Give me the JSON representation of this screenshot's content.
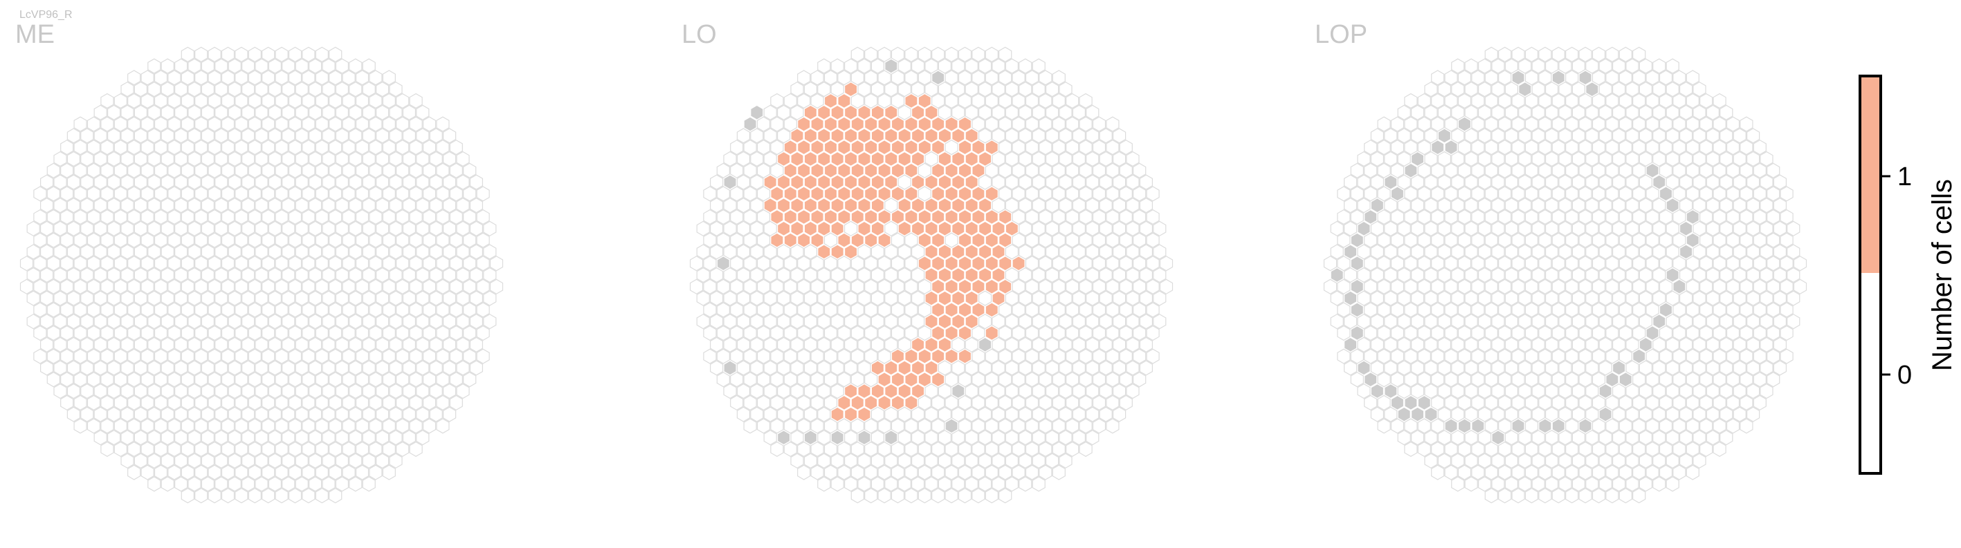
{
  "figure_label": "LcVP96_R",
  "colors": {
    "empty_outline": "#dcdcdc",
    "filled": "#f8b194",
    "outside_gray": "#cccccc",
    "title_gray": "#c0c0c0",
    "axis": "#000000"
  },
  "chart_data": [
    {
      "type": "heatmap",
      "title": "ME",
      "description_cells": "hexagonal column map; all columns count 0",
      "filled_columns": [],
      "outside_columns": []
    },
    {
      "type": "heatmap",
      "title": "LO",
      "filled_region_rows": [
        {
          "row": -16,
          "cols": [
            [
              -6,
              -6
            ]
          ]
        },
        {
          "row": -15,
          "cols": [
            [
              -8,
              -7
            ],
            [
              -2,
              -1
            ]
          ]
        },
        {
          "row": -14,
          "cols": [
            [
              -9,
              -3
            ],
            [
              -1,
              0
            ]
          ]
        },
        {
          "row": -13,
          "cols": [
            [
              -10,
              2
            ]
          ]
        },
        {
          "row": -12,
          "cols": [
            [
              -10,
              3
            ]
          ]
        },
        {
          "row": -11,
          "cols": [
            [
              -11,
              0
            ],
            [
              2,
              4
            ]
          ]
        },
        {
          "row": -10,
          "cols": [
            [
              -11,
              -1
            ],
            [
              1,
              4
            ]
          ]
        },
        {
          "row": -9,
          "cols": [
            [
              -11,
              -2
            ],
            [
              0,
              3
            ]
          ]
        },
        {
          "row": -8,
          "cols": [
            [
              -12,
              -3
            ],
            [
              -1,
              3
            ]
          ]
        },
        {
          "row": -7,
          "cols": [
            [
              -12,
              -2
            ],
            [
              0,
              4
            ]
          ]
        },
        {
          "row": -6,
          "cols": [
            [
              -12,
              -4
            ],
            [
              -2,
              4
            ]
          ]
        },
        {
          "row": -5,
          "cols": [
            [
              -12,
              5
            ]
          ]
        },
        {
          "row": -4,
          "cols": [
            [
              -11,
              -7
            ],
            [
              -5,
              -4
            ],
            [
              -2,
              6
            ]
          ]
        },
        {
          "row": -3,
          "cols": [
            [
              -12,
              -9
            ],
            [
              -7,
              -4
            ],
            [
              -1,
              0
            ],
            [
              2,
              5
            ]
          ]
        },
        {
          "row": -2,
          "cols": [
            [
              -8,
              -6
            ],
            [
              0,
              5
            ]
          ]
        },
        {
          "row": -1,
          "cols": [
            [
              -1,
              6
            ]
          ]
        },
        {
          "row": 0,
          "cols": [
            [
              0,
              5
            ]
          ]
        },
        {
          "row": 1,
          "cols": [
            [
              0,
              5
            ]
          ]
        },
        {
          "row": 2,
          "cols": [
            [
              0,
              3
            ],
            [
              5,
              5
            ]
          ]
        },
        {
          "row": 3,
          "cols": [
            [
              0,
              4
            ]
          ]
        },
        {
          "row": 4,
          "cols": [
            [
              0,
              3
            ]
          ]
        },
        {
          "row": 5,
          "cols": [
            [
              0,
              2
            ],
            [
              4,
              4
            ]
          ]
        },
        {
          "row": 6,
          "cols": [
            [
              -1,
              1
            ]
          ]
        },
        {
          "row": 7,
          "cols": [
            [
              -3,
              2
            ]
          ]
        },
        {
          "row": 8,
          "cols": [
            [
              -4,
              0
            ]
          ]
        },
        {
          "row": 9,
          "cols": [
            [
              -4,
              -1
            ],
            [
              0,
              0
            ]
          ]
        },
        {
          "row": 10,
          "cols": [
            [
              -6,
              -1
            ]
          ]
        },
        {
          "row": 11,
          "cols": [
            [
              -7,
              -2
            ]
          ]
        },
        {
          "row": 12,
          "cols": [
            [
              -7,
              -5
            ]
          ]
        }
      ],
      "outside_points": [
        [
          -3,
          -18
        ],
        [
          0,
          -17
        ],
        [
          -13,
          -14
        ],
        [
          -14,
          -13
        ],
        [
          -15,
          -8
        ],
        [
          -16,
          -1
        ],
        [
          -15,
          8
        ],
        [
          4,
          5
        ],
        [
          4,
          6
        ],
        [
          2,
          10
        ],
        [
          1,
          13
        ],
        [
          -11,
          14
        ],
        [
          -9,
          14
        ],
        [
          -7,
          14
        ],
        [
          -5,
          14
        ],
        [
          -3,
          14
        ]
      ]
    },
    {
      "type": "heatmap",
      "title": "LOP",
      "filled_columns": [],
      "outside_points": [
        [
          -4,
          -17
        ],
        [
          -3,
          -16
        ],
        [
          -1,
          -17
        ],
        [
          1,
          -17
        ],
        [
          2,
          -16
        ],
        [
          -8,
          -13
        ],
        [
          -9,
          -12
        ],
        [
          -10,
          -11
        ],
        [
          -11,
          -10
        ],
        [
          -12,
          -9
        ],
        [
          -13,
          -8
        ],
        [
          -13,
          -7
        ],
        [
          -14,
          -6
        ],
        [
          -15,
          -5
        ],
        [
          -15,
          -4
        ],
        [
          -16,
          -3
        ],
        [
          -16,
          -2
        ],
        [
          -16,
          -1
        ],
        [
          -16,
          1
        ],
        [
          -17,
          0
        ],
        [
          -16,
          2
        ],
        [
          -16,
          3
        ],
        [
          -16,
          5
        ],
        [
          -16,
          6
        ],
        [
          -15,
          8
        ],
        [
          -15,
          9
        ],
        [
          -14,
          10
        ],
        [
          -13,
          10
        ],
        [
          -13,
          11
        ],
        [
          -12,
          11
        ],
        [
          -11,
          12
        ],
        [
          -10,
          12
        ],
        [
          -9,
          13
        ],
        [
          -8,
          13
        ],
        [
          -7,
          13
        ],
        [
          -5,
          14
        ],
        [
          -4,
          13
        ],
        [
          -2,
          13
        ],
        [
          -1,
          13
        ],
        [
          1,
          13
        ],
        [
          3,
          12
        ],
        [
          6,
          -9
        ],
        [
          7,
          -8
        ],
        [
          7,
          -7
        ],
        [
          8,
          -6
        ],
        [
          9,
          -5
        ],
        [
          9,
          -4
        ],
        [
          9,
          -3
        ],
        [
          9,
          -2
        ],
        [
          8,
          0
        ],
        [
          8,
          1
        ],
        [
          7,
          3
        ],
        [
          7,
          4
        ],
        [
          6,
          5
        ],
        [
          6,
          6
        ],
        [
          5,
          7
        ],
        [
          4,
          8
        ],
        [
          3,
          9
        ],
        [
          3,
          10
        ],
        [
          4,
          9
        ],
        [
          -9,
          -11
        ],
        [
          -11,
          11
        ],
        [
          -12,
          12
        ]
      ]
    }
  ],
  "colorbar": {
    "label": "Number of cells",
    "ticks": [
      {
        "value": 1,
        "label": "1"
      },
      {
        "value": 0,
        "label": "0"
      }
    ],
    "segments": [
      {
        "from": 0.5,
        "to": 1.5,
        "color": "#f8b194"
      },
      {
        "from": -0.5,
        "to": 0.5,
        "color": "#ffffff"
      }
    ],
    "range": [
      -0.5,
      1.5
    ]
  }
}
